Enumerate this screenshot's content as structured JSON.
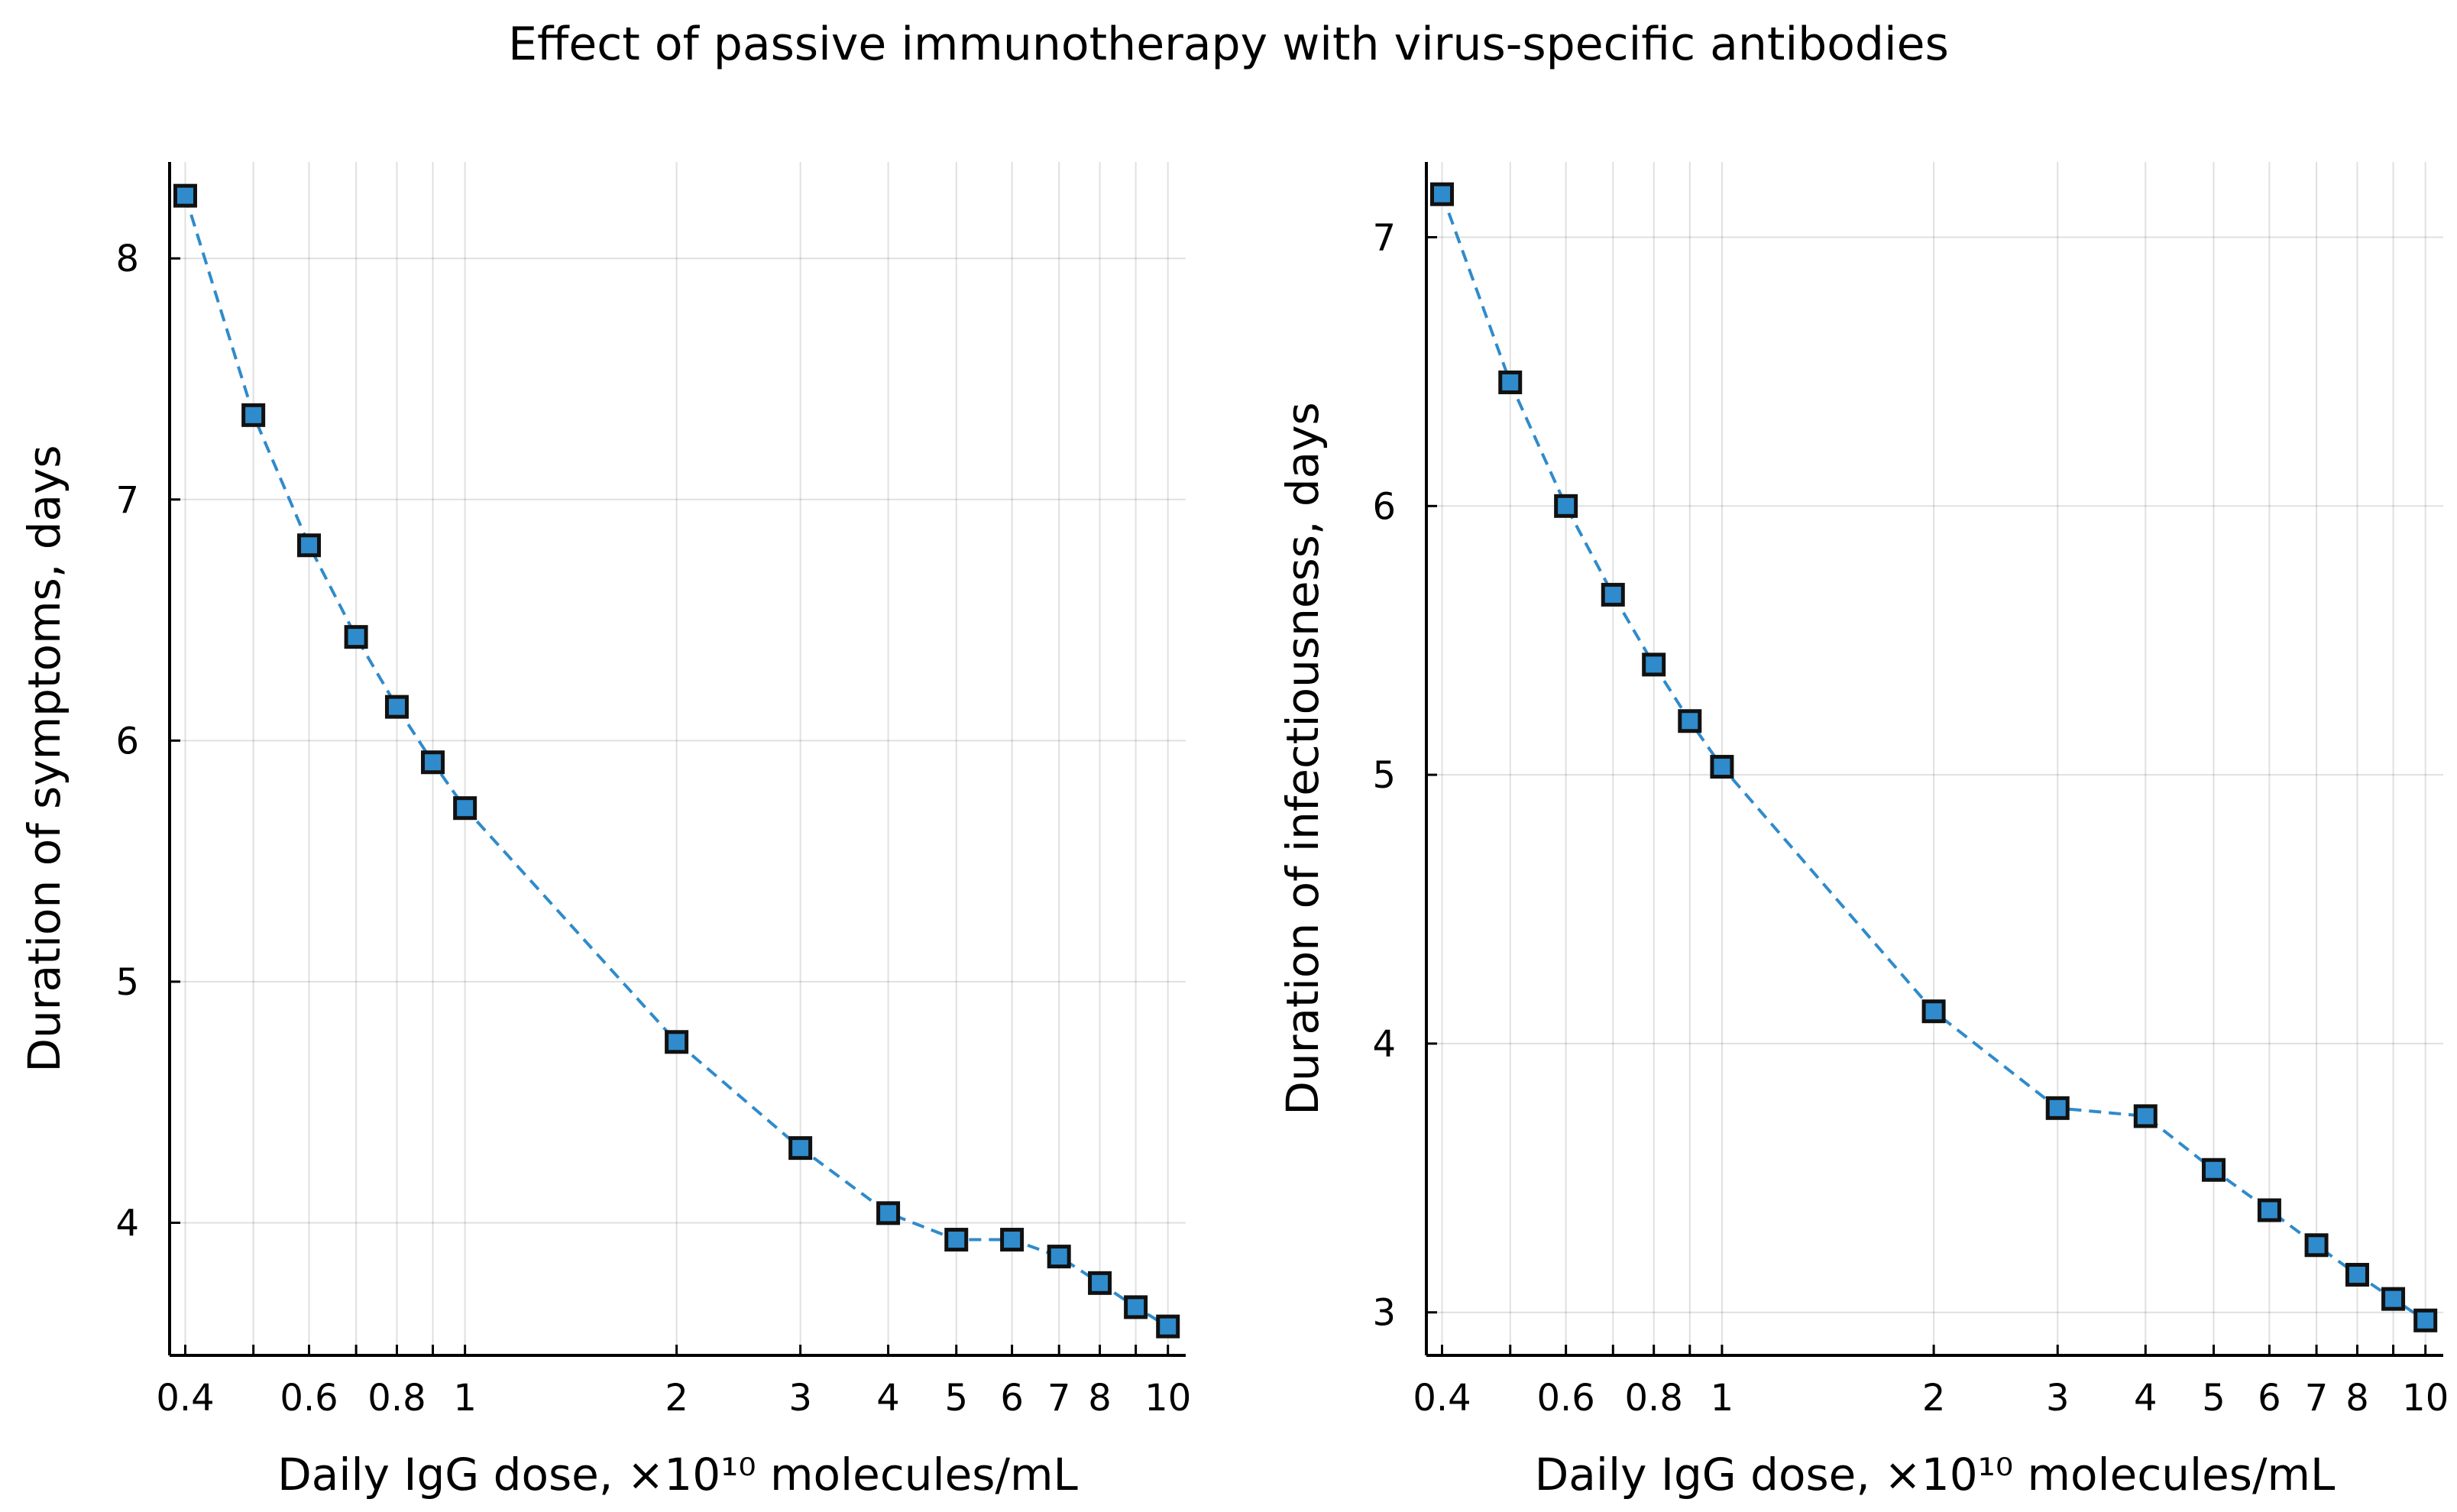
{
  "figure": {
    "title": "Effect of passive immunotherapy with virus-specific antibodies"
  },
  "colors": {
    "series": "#2f8bcb",
    "marker_edge": "#111111"
  },
  "chart_data": [
    {
      "type": "line",
      "title": "",
      "xlabel": "Daily IgG dose, ×10¹⁰ molecules/mL",
      "ylabel": "Duration of symptoms, days",
      "x_scale": "log",
      "grid": true,
      "legend": "none",
      "marker": "square",
      "line_style": "dashed",
      "xlim": [
        0.38,
        10.6
      ],
      "ylim": [
        3.45,
        8.4
      ],
      "x_ticks": [
        0.4,
        0.5,
        0.6,
        0.7,
        0.8,
        0.9,
        1,
        2,
        3,
        4,
        5,
        6,
        7,
        8,
        9,
        10
      ],
      "x_tick_labels": [
        "0.4",
        "",
        "0.6",
        "",
        "0.8",
        "",
        "1",
        "2",
        "3",
        "4",
        "5",
        "6",
        "7",
        "8",
        "",
        "10"
      ],
      "y_ticks": [
        4,
        5,
        6,
        7,
        8
      ],
      "y_tick_labels": [
        "4",
        "5",
        "6",
        "7",
        "8"
      ],
      "series": [
        {
          "x": [
            0.4,
            0.5,
            0.6,
            0.7,
            0.8,
            0.9,
            1,
            2,
            3,
            4,
            5,
            6,
            7,
            8,
            9,
            10
          ],
          "y": [
            8.26,
            7.35,
            6.81,
            6.43,
            6.14,
            5.91,
            5.72,
            4.75,
            4.31,
            4.04,
            3.93,
            3.93,
            3.86,
            3.75,
            3.65,
            3.57
          ]
        }
      ]
    },
    {
      "type": "line",
      "title": "",
      "xlabel": "Daily IgG dose, ×10¹⁰ molecules/mL",
      "ylabel": "Duration of infectiousness, days",
      "x_scale": "log",
      "grid": true,
      "legend": "none",
      "marker": "square",
      "line_style": "dashed",
      "xlim": [
        0.38,
        10.6
      ],
      "ylim": [
        2.84,
        7.28
      ],
      "x_ticks": [
        0.4,
        0.5,
        0.6,
        0.7,
        0.8,
        0.9,
        1,
        2,
        3,
        4,
        5,
        6,
        7,
        8,
        9,
        10
      ],
      "x_tick_labels": [
        "0.4",
        "",
        "0.6",
        "",
        "0.8",
        "",
        "1",
        "2",
        "3",
        "4",
        "5",
        "6",
        "7",
        "8",
        "",
        "10"
      ],
      "y_ticks": [
        3,
        4,
        5,
        6,
        7
      ],
      "y_tick_labels": [
        "3",
        "4",
        "5",
        "6",
        "7"
      ],
      "series": [
        {
          "x": [
            0.4,
            0.5,
            0.6,
            0.7,
            0.8,
            0.9,
            1,
            2,
            3,
            4,
            5,
            6,
            7,
            8,
            9,
            10
          ],
          "y": [
            7.16,
            6.46,
            6.0,
            5.67,
            5.41,
            5.2,
            5.03,
            4.12,
            3.76,
            3.73,
            3.53,
            3.38,
            3.25,
            3.14,
            3.05,
            2.97
          ]
        }
      ]
    }
  ]
}
